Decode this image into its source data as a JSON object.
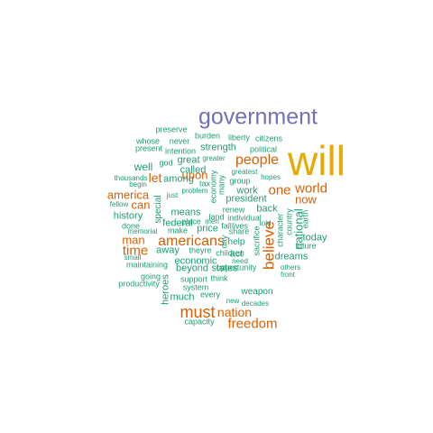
{
  "colors": {
    "tier1": "#D95F02",
    "tier2": "#1B9E77",
    "tier3": "#7570B3",
    "tier4": "#E6AB02"
  },
  "words": [
    {
      "text": "will",
      "color": "tier4"
    },
    {
      "text": "government",
      "color": "tier3"
    },
    {
      "text": "freedom",
      "color": "tier1"
    },
    {
      "text": "must",
      "color": "tier1"
    },
    {
      "text": "nation",
      "color": "tier1"
    },
    {
      "text": "americans",
      "color": "tier1"
    },
    {
      "text": "believe",
      "color": "tier1"
    },
    {
      "text": "people",
      "color": "tier1"
    },
    {
      "text": "world",
      "color": "tier1"
    },
    {
      "text": "one",
      "color": "tier1"
    },
    {
      "text": "now",
      "color": "tier1"
    },
    {
      "text": "america",
      "color": "tier1"
    },
    {
      "text": "time",
      "color": "tier1"
    },
    {
      "text": "man",
      "color": "tier1"
    },
    {
      "text": "can",
      "color": "tier1"
    },
    {
      "text": "let",
      "color": "tier1"
    },
    {
      "text": "upon",
      "color": "tier1"
    },
    {
      "text": "national",
      "color": "tier2"
    },
    {
      "text": "today",
      "color": "tier2"
    },
    {
      "text": "dreams",
      "color": "tier2"
    },
    {
      "text": "strength",
      "color": "tier2"
    },
    {
      "text": "called",
      "color": "tier2"
    },
    {
      "text": "well",
      "color": "tier2"
    },
    {
      "text": "among",
      "color": "tier2"
    },
    {
      "text": "great",
      "color": "tier2"
    },
    {
      "text": "greater",
      "color": "tier2"
    },
    {
      "text": "means",
      "color": "tier2"
    },
    {
      "text": "president",
      "color": "tier2"
    },
    {
      "text": "work",
      "color": "tier2"
    },
    {
      "text": "back",
      "color": "tier2"
    },
    {
      "text": "history",
      "color": "tier2"
    },
    {
      "text": "federal",
      "color": "tier2"
    },
    {
      "text": "away",
      "color": "tier2"
    },
    {
      "text": "economic",
      "color": "tier2"
    },
    {
      "text": "beyond",
      "color": "tier2"
    },
    {
      "text": "states",
      "color": "tier2"
    },
    {
      "text": "act",
      "color": "tier2"
    },
    {
      "text": "price",
      "color": "tier2"
    },
    {
      "text": "help",
      "color": "tier2"
    },
    {
      "text": "heroes",
      "color": "tier2"
    },
    {
      "text": "much",
      "color": "tier2"
    },
    {
      "text": "weapon",
      "color": "tier2"
    },
    {
      "text": "preserve",
      "color": "tier2"
    },
    {
      "text": "burden",
      "color": "tier2"
    },
    {
      "text": "liberty",
      "color": "tier2"
    },
    {
      "text": "citizens",
      "color": "tier2"
    },
    {
      "text": "whose",
      "color": "tier2"
    },
    {
      "text": "never",
      "color": "tier2"
    },
    {
      "text": "present",
      "color": "tier2"
    },
    {
      "text": "intention",
      "color": "tier2"
    },
    {
      "text": "political",
      "color": "tier2"
    },
    {
      "text": "god",
      "color": "tier2"
    },
    {
      "text": "greatest",
      "color": "tier2"
    },
    {
      "text": "hopes",
      "color": "tier2"
    },
    {
      "text": "thousands",
      "color": "tier2"
    },
    {
      "text": "begin",
      "color": "tier2"
    },
    {
      "text": "fellow",
      "color": "tier2"
    },
    {
      "text": "tax",
      "color": "tier2"
    },
    {
      "text": "group",
      "color": "tier2"
    },
    {
      "text": "just",
      "color": "tier2"
    },
    {
      "text": "problem",
      "color": "tier2"
    },
    {
      "text": "renew",
      "color": "tier2"
    },
    {
      "text": "done",
      "color": "tier2"
    },
    {
      "text": "memorial",
      "color": "tier2"
    },
    {
      "text": "make",
      "color": "tier2"
    },
    {
      "text": "place",
      "color": "tier2"
    },
    {
      "text": "men",
      "color": "tier2"
    },
    {
      "text": "land",
      "color": "tier2"
    },
    {
      "text": "individual",
      "color": "tier2"
    },
    {
      "text": "fall",
      "color": "tier2"
    },
    {
      "text": "lives",
      "color": "tier2"
    },
    {
      "text": "told",
      "color": "tier2"
    },
    {
      "text": "theyre",
      "color": "tier2"
    },
    {
      "text": "share",
      "color": "tier2"
    },
    {
      "text": "small",
      "color": "tier2"
    },
    {
      "text": "maintaining",
      "color": "tier2"
    },
    {
      "text": "children",
      "color": "tier2"
    },
    {
      "text": "future",
      "color": "tier2"
    },
    {
      "text": "going",
      "color": "tier2"
    },
    {
      "text": "think",
      "color": "tier2"
    },
    {
      "text": "need",
      "color": "tier2"
    },
    {
      "text": "opportunity",
      "color": "tier2"
    },
    {
      "text": "others",
      "color": "tier2"
    },
    {
      "text": "productivity",
      "color": "tier2"
    },
    {
      "text": "support",
      "color": "tier2"
    },
    {
      "text": "system",
      "color": "tier2"
    },
    {
      "text": "front",
      "color": "tier2"
    },
    {
      "text": "every",
      "color": "tier2"
    },
    {
      "text": "new",
      "color": "tier2"
    },
    {
      "text": "decades",
      "color": "tier2"
    },
    {
      "text": "capacity",
      "color": "tier2"
    },
    {
      "text": "special",
      "color": "tier2"
    },
    {
      "text": "economy",
      "color": "tier2"
    },
    {
      "text": "many",
      "color": "tier2"
    },
    {
      "text": "day",
      "color": "tier2"
    },
    {
      "text": "sacrifice",
      "color": "tier2"
    },
    {
      "text": "character",
      "color": "tier2"
    },
    {
      "text": "country",
      "color": "tier2"
    },
    {
      "text": "earth",
      "color": "tier2"
    }
  ]
}
